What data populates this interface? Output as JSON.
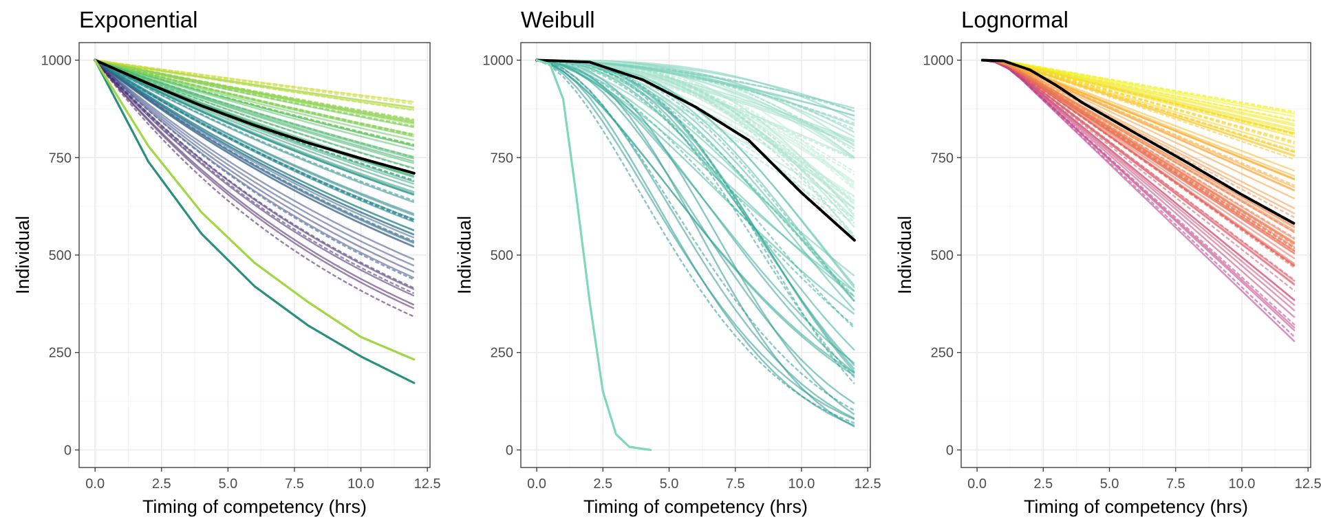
{
  "chart_data": [
    {
      "type": "line",
      "title": "Exponential",
      "xlabel": "Timing of competency (hrs)",
      "ylabel": "Individual",
      "xlim": [
        -0.6,
        12.6
      ],
      "ylim": [
        -45,
        1045
      ],
      "xticks": [
        0,
        2.5,
        5,
        7.5,
        10,
        12.5
      ],
      "xtick_labels": [
        "0.0",
        "2.5",
        "5.0",
        "7.5",
        "10.0",
        "12.5"
      ],
      "yticks": [
        0,
        250,
        500,
        750,
        1000
      ],
      "ytick_labels": [
        "0",
        "250",
        "500",
        "750",
        "1000"
      ],
      "grid": true,
      "legend": "none",
      "palette": [
        "#440154",
        "#3b528b",
        "#21908c",
        "#5dc863",
        "#fde725"
      ],
      "series": [
        {
          "role": "mean",
          "color": "#000000",
          "points": [
            [
              0,
              1000
            ],
            [
              2,
              940
            ],
            [
              4,
              883
            ],
            [
              6,
              833
            ],
            [
              8,
              788
            ],
            [
              10,
              748
            ],
            [
              12,
              710
            ]
          ]
        },
        {
          "role": "lowest",
          "color": "#2a8f80",
          "points": [
            [
              0,
              1000
            ],
            [
              2,
              740
            ],
            [
              4,
              555
            ],
            [
              6,
              420
            ],
            [
              8,
              320
            ],
            [
              10,
              240
            ],
            [
              12,
              172
            ]
          ]
        },
        {
          "role": "second-lowest",
          "color": "#a0d742",
          "points": [
            [
              0,
              1000
            ],
            [
              2,
              780
            ],
            [
              4,
              610
            ],
            [
              6,
              480
            ],
            [
              8,
              380
            ],
            [
              10,
              290
            ],
            [
              12,
              232
            ]
          ]
        }
      ],
      "spread": {
        "count": 80,
        "end_min": 335,
        "end_max": 915
      }
    },
    {
      "type": "line",
      "title": "Weibull",
      "xlabel": "Timing of competency (hrs)",
      "ylabel": "Individual",
      "xlim": [
        -0.6,
        12.6
      ],
      "ylim": [
        -45,
        1045
      ],
      "xticks": [
        0,
        2.5,
        5,
        7.5,
        10,
        12.5
      ],
      "xtick_labels": [
        "0.0",
        "2.5",
        "5.0",
        "7.5",
        "10.0",
        "12.5"
      ],
      "yticks": [
        0,
        250,
        500,
        750,
        1000
      ],
      "ytick_labels": [
        "0",
        "250",
        "500",
        "750",
        "1000"
      ],
      "grid": true,
      "legend": "none",
      "palette": [
        "#0d0887",
        "#3b528b",
        "#21908c",
        "#40b59c",
        "#c7efdc"
      ],
      "series": [
        {
          "role": "mean",
          "color": "#000000",
          "points": [
            [
              0,
              1000
            ],
            [
              2,
              995
            ],
            [
              4,
              950
            ],
            [
              6,
              880
            ],
            [
              8,
              795
            ],
            [
              10,
              660
            ],
            [
              12,
              538
            ]
          ]
        },
        {
          "role": "fast",
          "color": "#7fd8b8",
          "points": [
            [
              0,
              1000
            ],
            [
              0.5,
              990
            ],
            [
              1,
              900
            ],
            [
              1.5,
              650
            ],
            [
              2,
              380
            ],
            [
              2.5,
              150
            ],
            [
              3,
              40
            ],
            [
              3.5,
              8
            ],
            [
              4.3,
              0
            ]
          ]
        }
      ],
      "spread": {
        "count": 80,
        "end_min": 15,
        "end_max": 890
      }
    },
    {
      "type": "line",
      "title": "Lognormal",
      "xlabel": "Timing of competency (hrs)",
      "ylabel": "Individual",
      "xlim": [
        -0.6,
        12.6
      ],
      "ylim": [
        -45,
        1045
      ],
      "xticks": [
        0,
        2.5,
        5,
        7.5,
        10,
        12.5
      ],
      "xtick_labels": [
        "0.0",
        "2.5",
        "5.0",
        "7.5",
        "10.0",
        "12.5"
      ],
      "yticks": [
        0,
        250,
        500,
        750,
        1000
      ],
      "ytick_labels": [
        "0",
        "250",
        "500",
        "750",
        "1000"
      ],
      "grid": true,
      "legend": "none",
      "palette": [
        "#6a00a8",
        "#b12a90",
        "#e16462",
        "#fca636",
        "#f0f921"
      ],
      "series": [
        {
          "role": "mean",
          "color": "#000000",
          "points": [
            [
              0.2,
              1000
            ],
            [
              1,
              998
            ],
            [
              2,
              975
            ],
            [
              3,
              935
            ],
            [
              4,
              890
            ],
            [
              6,
              812
            ],
            [
              8,
              735
            ],
            [
              10,
              655
            ],
            [
              12,
              580
            ]
          ]
        }
      ],
      "spread": {
        "count": 80,
        "end_min": 248,
        "end_max": 878
      }
    }
  ]
}
